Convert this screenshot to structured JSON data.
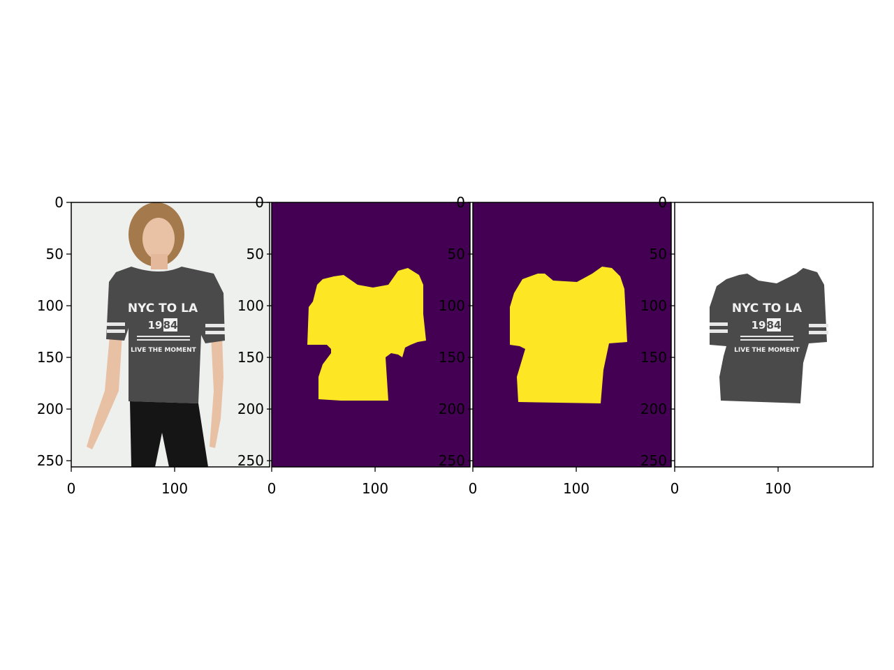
{
  "figure": {
    "panels": [
      {
        "name": "original-photo",
        "xticks": [
          "0",
          "100"
        ],
        "yticks": [
          "0",
          "50",
          "100",
          "150",
          "200",
          "250"
        ],
        "shirt_print": {
          "line1": "NYC TO LA",
          "year_left": "19",
          "year_right": "84",
          "line3": "LIVE THE MOMENT"
        }
      },
      {
        "name": "predicted-mask",
        "xticks": [
          "0",
          "100"
        ],
        "yticks": [
          "0",
          "50",
          "100",
          "150",
          "200",
          "250"
        ]
      },
      {
        "name": "ground-truth-mask",
        "xticks": [
          "0",
          "100"
        ],
        "yticks": [
          "0",
          "50",
          "100",
          "150",
          "200",
          "250"
        ]
      },
      {
        "name": "masked-garment",
        "xticks": [
          "0",
          "100"
        ],
        "yticks": [
          "0",
          "50",
          "100",
          "150",
          "200",
          "250"
        ],
        "shirt_print": {
          "line1": "NYC TO LA",
          "year_left": "19",
          "year_right": "84",
          "line3": "LIVE THE MOMENT"
        }
      }
    ],
    "colors": {
      "mask_background": "#440154",
      "mask_foreground": "#fde725",
      "shirt": "#4a4a4a",
      "photo_background": "#eef0ee"
    }
  }
}
